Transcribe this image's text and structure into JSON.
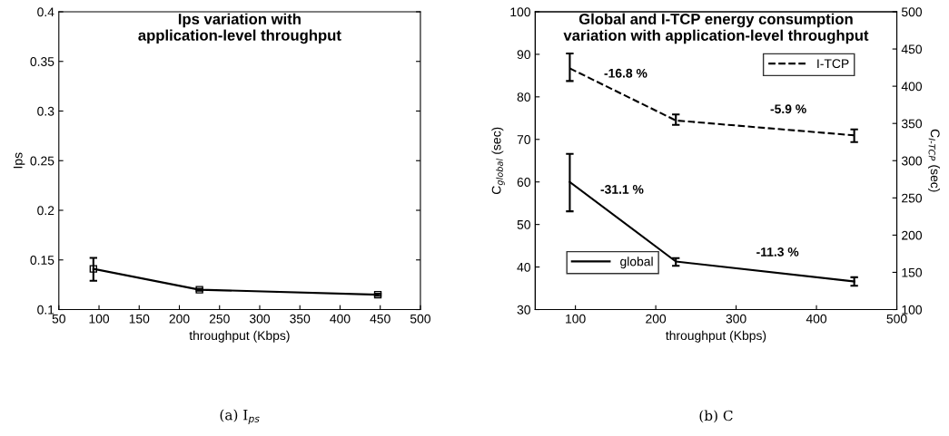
{
  "chart_data": [
    {
      "type": "line",
      "title": "Ips variation with\napplication-level throughput",
      "xlabel": "throughput (Kbps)",
      "ylabel": "Ips",
      "x": [
        93,
        225,
        447
      ],
      "series": [
        {
          "color": "#000000",
          "values": [
            0.141,
            0.12,
            0.115
          ],
          "errors": [
            [
              0.129,
              0.152
            ],
            [
              0.119,
              0.121
            ],
            [
              0.114,
              0.116
            ]
          ]
        }
      ],
      "xlim": [
        50,
        500
      ],
      "xticks": [
        50,
        100,
        150,
        200,
        250,
        300,
        350,
        400,
        450,
        500
      ],
      "ylim": [
        0.1,
        0.4
      ],
      "yticks": [
        0.1,
        0.15,
        0.2,
        0.25,
        0.3,
        0.35,
        0.4
      ],
      "marker": "square",
      "line_style": "solid",
      "grid": false,
      "annotations": [
        "(a) I$_{ps}$"
      ]
    },
    {
      "type": "line",
      "title": "Global and I-TCP energy consumption\nvariation with application-level throughput",
      "xlabel": "throughput (Kbps)",
      "ylabel": "C$_{global}$ (sec)",
      "y2label": "C$_{I-TCP}$ (sec)",
      "x": [
        93,
        225,
        447
      ],
      "series": [
        {
          "name": "global",
          "color": "#000000",
          "line_style": "solid",
          "values": [
            60,
            41.3,
            36.6
          ],
          "errors": [
            [
              53.1,
              66.6
            ],
            [
              40.3,
              42.1
            ],
            [
              35.6,
              37.6
            ]
          ]
        },
        {
          "name": "I-TCP",
          "color": "#000000",
          "line_style": "dashed",
          "axis": "y2",
          "values": [
            424,
            354,
            334
          ],
          "errors": [
            [
              407,
              444
            ],
            [
              348,
              362
            ],
            [
              325,
              342
            ]
          ]
        }
      ],
      "xlim": [
        50,
        500
      ],
      "xticks": [
        100,
        200,
        300,
        400,
        500
      ],
      "ylim": [
        30,
        100
      ],
      "yticks": [
        30,
        40,
        50,
        60,
        70,
        80,
        90,
        100
      ],
      "y2lim": [
        100,
        500
      ],
      "y2ticks": [
        100,
        150,
        200,
        250,
        300,
        350,
        400,
        450,
        500
      ],
      "grid": false,
      "legend": [
        "bottom left",
        "top right"
      ],
      "annotations": [
        "-16.8 %",
        "-5.9 %",
        "-31.1 %",
        "-11.3 %",
        "(b) C"
      ]
    }
  ]
}
